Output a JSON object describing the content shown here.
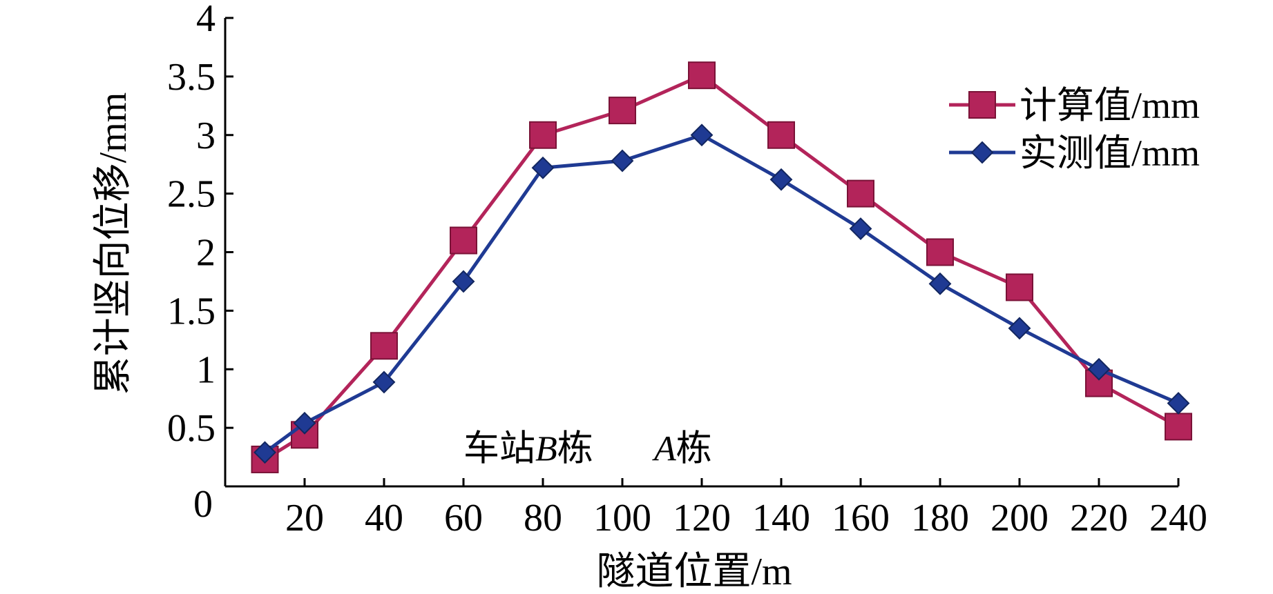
{
  "chart_data": {
    "type": "line",
    "title": "",
    "xlabel": "隧道位置/m",
    "ylabel": "累计竖向位移/mm",
    "xlim": [
      0,
      240
    ],
    "ylim": [
      0,
      4
    ],
    "x_ticks": [
      20,
      40,
      60,
      80,
      100,
      120,
      140,
      160,
      180,
      200,
      220,
      240
    ],
    "y_ticks": [
      0,
      0.5,
      1,
      1.5,
      2,
      2.5,
      3,
      3.5,
      4
    ],
    "x_tick_labels": [
      "20",
      "40",
      "60",
      "80",
      "100",
      "120",
      "140",
      "160",
      "180",
      "200",
      "220",
      "240"
    ],
    "y_tick_labels": [
      "0",
      "0.5",
      "1",
      "1.5",
      "2",
      "2.5",
      "3",
      "3.5",
      "4"
    ],
    "grid": false,
    "legend_position": "top-right",
    "x": [
      10,
      20,
      40,
      60,
      80,
      100,
      120,
      140,
      160,
      180,
      200,
      220,
      240
    ],
    "series": [
      {
        "name": "计算值/mm",
        "color": "#b3245a",
        "marker": "square",
        "values": [
          0.23,
          0.44,
          1.2,
          2.1,
          3.0,
          3.21,
          3.51,
          3.0,
          2.5,
          2.0,
          1.7,
          0.88,
          0.51
        ]
      },
      {
        "name": "实测值/mm",
        "color": "#1f3a93",
        "marker": "diamond",
        "values": [
          0.29,
          0.54,
          0.89,
          1.75,
          2.72,
          2.78,
          3.0,
          2.62,
          2.2,
          1.73,
          1.35,
          1.0,
          0.71
        ]
      }
    ],
    "annotations": [
      {
        "parts": [
          {
            "text": "车站",
            "italic": false
          },
          {
            "text": "B",
            "italic": true
          },
          {
            "text": "栋",
            "italic": false
          }
        ],
        "x": 60,
        "y": 0.22
      },
      {
        "parts": [
          {
            "text": "A",
            "italic": true
          },
          {
            "text": "栋",
            "italic": false
          }
        ],
        "x": 108,
        "y": 0.22
      }
    ]
  }
}
